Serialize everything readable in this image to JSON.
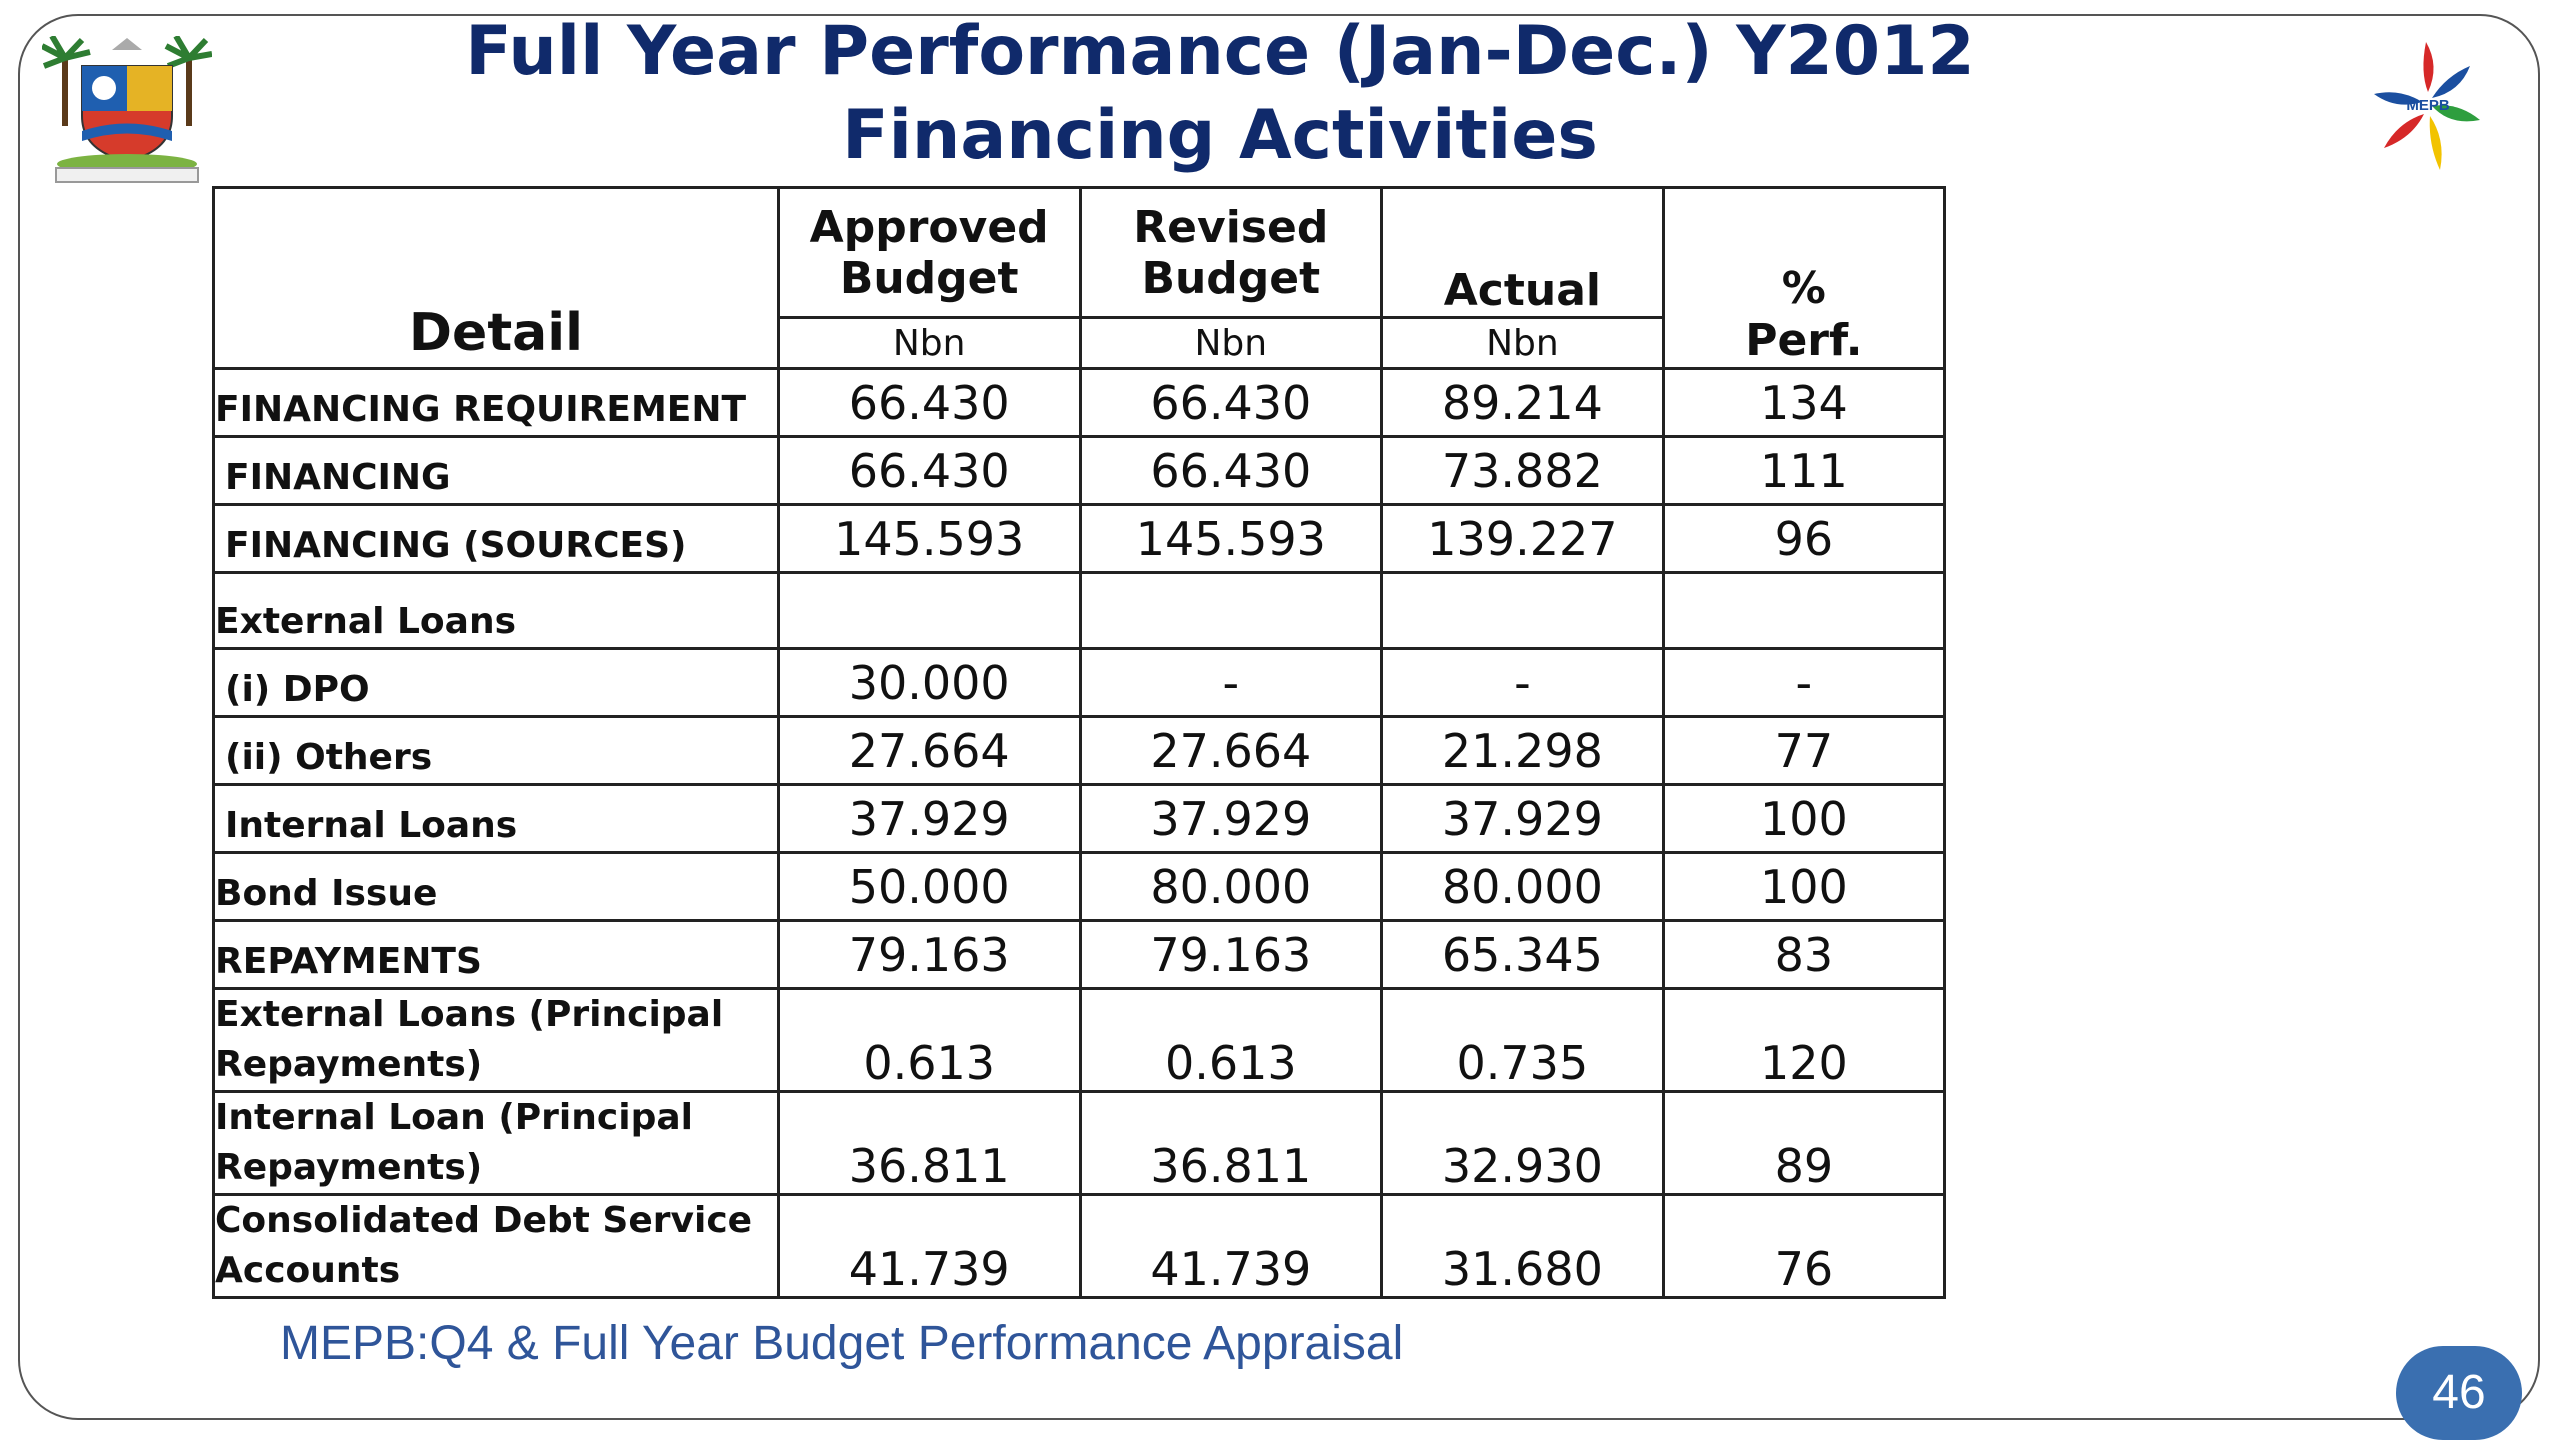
{
  "slide": {
    "title": "Full Year Performance (Jan-Dec.) Y2012 Financing Activities",
    "footer": "MEPB:Q4 & Full Year  Budget Performance Appraisal",
    "page_number": "46",
    "right_logo_text": "MEPB"
  },
  "table": {
    "headers": {
      "detail": "Detail",
      "approved_1": "Approved",
      "approved_2": "Budget",
      "revised_1": "Revised",
      "revised_2": "Budget",
      "actual": "Actual",
      "perf_1": "%",
      "perf_2": "Perf.",
      "unit": "Nbn"
    },
    "rows": [
      {
        "detail": "FINANCING REQUIREMENT",
        "approved": "66.430",
        "revised": "66.430",
        "actual": "89.214",
        "perf": "134"
      },
      {
        "detail": "FINANCING",
        "approved": "66.430",
        "revised": "66.430",
        "actual": "73.882",
        "perf": "111"
      },
      {
        "detail": "FINANCING (SOURCES)",
        "approved": "145.593",
        "revised": "145.593",
        "actual": "139.227",
        "perf": "96"
      },
      {
        "detail": "External Loans",
        "approved": "",
        "revised": "",
        "actual": "",
        "perf": ""
      },
      {
        "detail": "(i) DPO",
        "approved": "30.000",
        "revised": "-",
        "actual": "-",
        "perf": "-"
      },
      {
        "detail": "(ii) Others",
        "approved": "27.664",
        "revised": "27.664",
        "actual": "21.298",
        "perf": "77"
      },
      {
        "detail": "Internal Loans",
        "approved": "37.929",
        "revised": "37.929",
        "actual": "37.929",
        "perf": "100"
      },
      {
        "detail": "Bond Issue",
        "approved": "50.000",
        "revised": "80.000",
        "actual": "80.000",
        "perf": "100"
      },
      {
        "detail": "REPAYMENTS",
        "approved": "79.163",
        "revised": "79.163",
        "actual": "65.345",
        "perf": "83"
      },
      {
        "detail_1": "External Loans (Principal",
        "detail_2": "Repayments)",
        "approved": "0.613",
        "revised": "0.613",
        "actual": "0.735",
        "perf": "120"
      },
      {
        "detail_1": "Internal Loan (Principal",
        "detail_2": "Repayments)",
        "approved": "36.811",
        "revised": "36.811",
        "actual": "32.930",
        "perf": "89"
      },
      {
        "detail_1": "Consolidated Debt Service",
        "detail_2": "Accounts",
        "approved": "41.739",
        "revised": "41.739",
        "actual": "31.680",
        "perf": "76"
      }
    ]
  },
  "colors": {
    "title": "#102a6b",
    "footer": "#2f5599",
    "badge": "#3a6fb0"
  }
}
